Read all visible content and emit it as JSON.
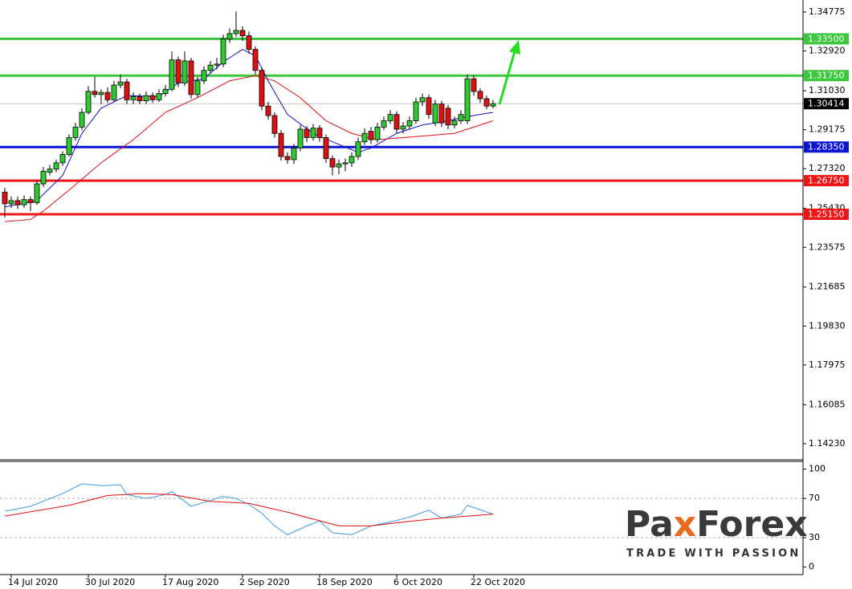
{
  "chart_data": {
    "type": "candlestick",
    "categories": [
      null,
      "14 Jul 2020",
      null,
      null,
      null,
      null,
      null,
      null,
      null,
      null,
      null,
      null,
      null,
      "30 Jul 2020",
      null,
      null,
      null,
      null,
      null,
      null,
      null,
      null,
      null,
      null,
      null,
      "17 Aug 2020",
      null,
      null,
      null,
      null,
      null,
      null,
      null,
      null,
      null,
      null,
      null,
      "2 Sep 2020",
      null,
      null,
      null,
      null,
      null,
      null,
      null,
      null,
      null,
      null,
      null,
      "18 Sep 2020",
      null,
      null,
      null,
      null,
      null,
      null,
      null,
      null,
      null,
      null,
      null,
      "6 Oct 2020",
      null,
      null,
      null,
      null,
      null,
      null,
      null,
      null,
      null,
      null,
      null,
      "22 Oct 2020",
      null,
      null,
      null
    ],
    "open": [
      1.262,
      1.2565,
      1.258,
      1.256,
      1.2585,
      1.257,
      1.266,
      1.2715,
      1.273,
      1.276,
      1.28,
      1.288,
      1.293,
      1.3,
      1.31,
      1.3085,
      1.3095,
      1.306,
      1.313,
      1.3145,
      1.306,
      1.3075,
      1.3055,
      1.308,
      1.306,
      1.309,
      1.311,
      1.325,
      1.314,
      1.3245,
      1.3085,
      1.315,
      1.32,
      1.3225,
      1.323,
      1.335,
      1.3375,
      1.339,
      1.3365,
      1.33,
      1.32,
      1.303,
      1.2985,
      1.29,
      1.279,
      1.2775,
      1.283,
      1.292,
      1.288,
      1.2925,
      1.288,
      1.278,
      1.274,
      1.2755,
      1.276,
      1.279,
      1.286,
      1.291,
      1.287,
      1.293,
      1.296,
      1.299,
      1.292,
      1.2935,
      1.296,
      1.305,
      1.307,
      1.295,
      1.304,
      1.302,
      1.294,
      1.296,
      1.296,
      1.316,
      1.31,
      1.3065,
      1.303
    ],
    "high": [
      1.264,
      1.26,
      1.26,
      1.2605,
      1.26,
      1.2675,
      1.274,
      1.275,
      1.2775,
      1.2815,
      1.2895,
      1.295,
      1.302,
      1.3125,
      1.317,
      1.311,
      1.312,
      1.315,
      1.318,
      1.316,
      1.3095,
      1.309,
      1.31,
      1.3095,
      1.311,
      1.313,
      1.329,
      1.3265,
      1.329,
      1.326,
      1.317,
      1.322,
      1.3245,
      1.326,
      1.337,
      1.34,
      1.348,
      1.341,
      1.3385,
      1.3315,
      1.3215,
      1.305,
      1.3,
      1.2915,
      1.281,
      1.285,
      1.294,
      1.2935,
      1.2945,
      1.294,
      1.2895,
      1.2795,
      1.2775,
      1.278,
      1.281,
      1.288,
      1.2925,
      1.293,
      1.295,
      1.298,
      1.301,
      1.3005,
      1.2955,
      1.298,
      1.307,
      1.309,
      1.3085,
      1.306,
      1.3055,
      1.3035,
      1.298,
      1.301,
      1.318,
      1.3175,
      1.3115,
      1.308,
      1.306
    ],
    "low": [
      1.25,
      1.2545,
      1.254,
      1.2545,
      1.253,
      1.256,
      1.2645,
      1.27,
      1.2715,
      1.2745,
      1.279,
      1.2865,
      1.2915,
      1.299,
      1.307,
      1.304,
      1.3045,
      1.305,
      1.3115,
      1.304,
      1.304,
      1.304,
      1.304,
      1.3045,
      1.305,
      1.3075,
      1.31,
      1.312,
      1.3125,
      1.3065,
      1.307,
      1.3135,
      1.3185,
      1.3205,
      1.3215,
      1.333,
      1.336,
      1.334,
      1.328,
      1.318,
      1.301,
      1.2965,
      1.288,
      1.277,
      1.2755,
      1.2755,
      1.2815,
      1.286,
      1.2865,
      1.286,
      1.276,
      1.27,
      1.2705,
      1.272,
      1.274,
      1.2775,
      1.2845,
      1.285,
      1.2855,
      1.2915,
      1.2945,
      1.29,
      1.29,
      1.292,
      1.2945,
      1.303,
      1.297,
      1.2935,
      1.293,
      1.292,
      1.2925,
      1.2945,
      1.2945,
      1.308,
      1.3045,
      1.3015,
      1.302
    ],
    "close": [
      1.2565,
      1.258,
      1.256,
      1.2585,
      1.257,
      1.266,
      1.272,
      1.273,
      1.276,
      1.28,
      1.288,
      1.293,
      1.3,
      1.31,
      1.3085,
      1.3095,
      1.306,
      1.313,
      1.3145,
      1.306,
      1.3075,
      1.3055,
      1.308,
      1.306,
      1.309,
      1.311,
      1.325,
      1.314,
      1.3245,
      1.3085,
      1.315,
      1.32,
      1.3225,
      1.323,
      1.335,
      1.3375,
      1.339,
      1.3365,
      1.33,
      1.32,
      1.303,
      1.2985,
      1.29,
      1.279,
      1.2775,
      1.283,
      1.292,
      1.288,
      1.2925,
      1.288,
      1.278,
      1.274,
      1.2755,
      1.276,
      1.279,
      1.286,
      1.29,
      1.287,
      1.293,
      1.296,
      1.299,
      1.292,
      1.2935,
      1.296,
      1.305,
      1.307,
      1.299,
      1.304,
      1.295,
      1.294,
      1.296,
      1.299,
      1.316,
      1.31,
      1.3065,
      1.303,
      1.30414
    ],
    "up_color": "#2ecc2e",
    "down_color": "#e01010",
    "ylim": [
      1.135,
      1.3535
    ],
    "yticks": [
      1.34775,
      {
        "value": 1.3292,
        "label": "1.32920"
      },
      {
        "value": 1.3103,
        "label": "1.31030"
      },
      1.29175,
      {
        "value": 1.2732,
        "label": "1.27320"
      },
      {
        "value": 1.2543,
        "label": "1.25430"
      },
      1.23575,
      1.21685,
      {
        "value": 1.1983,
        "label": "1.19830"
      },
      1.17975,
      1.16085,
      {
        "value": 1.1423,
        "label": "1.14230"
      }
    ],
    "levels": [
      {
        "value": 1.335,
        "label": "1.33500",
        "color": "#3cc83c"
      },
      {
        "value": 1.3175,
        "label": "1.31750",
        "color": "#3cc83c"
      },
      {
        "value": 1.2835,
        "label": "1.28350",
        "color": "#0a14d2"
      },
      {
        "value": 1.2675,
        "label": "1.26750",
        "color": "#f01414"
      },
      {
        "value": 1.2515,
        "label": "1.25150",
        "color": "#f01414"
      }
    ],
    "last_price": 1.30414,
    "moving_averages": [
      {
        "color": "#1010c8",
        "x": [
          0,
          5,
          9,
          12,
          15,
          19,
          24,
          27,
          31,
          34,
          37,
          39,
          41,
          44,
          48,
          51,
          55,
          57,
          61,
          65,
          69,
          72,
          76
        ],
        "values": [
          1.255,
          1.258,
          1.27,
          1.29,
          1.302,
          1.308,
          1.3075,
          1.314,
          1.316,
          1.324,
          1.33,
          1.327,
          1.315,
          1.299,
          1.29,
          1.286,
          1.281,
          1.283,
          1.29,
          1.294,
          1.296,
          1.298,
          1.3
        ]
      },
      {
        "color": "#e01010",
        "x": [
          0,
          4,
          6,
          10,
          15,
          20,
          25,
          30,
          35,
          39,
          42,
          46,
          50,
          54,
          58,
          62,
          66,
          70,
          73,
          76
        ],
        "values": [
          1.248,
          1.249,
          1.253,
          1.263,
          1.276,
          1.287,
          1.3,
          1.307,
          1.315,
          1.3175,
          1.315,
          1.307,
          1.296,
          1.29,
          1.287,
          1.288,
          1.289,
          1.29,
          1.293,
          1.296
        ]
      }
    ],
    "indicator": {
      "ylim": [
        -6,
        107
      ],
      "yticks": [
        100,
        70,
        30,
        0
      ],
      "dashed_levels": [
        70,
        30
      ],
      "series": [
        {
          "color": "#3a9ae8",
          "x": [
            0,
            4,
            9,
            12,
            15,
            18,
            19,
            22,
            25,
            26,
            29,
            31,
            34,
            36,
            38,
            40,
            42,
            44,
            47,
            49,
            51,
            54,
            57,
            60,
            63,
            66,
            68,
            71,
            72,
            76
          ],
          "values": [
            57,
            62,
            75,
            85,
            83,
            84,
            74,
            70,
            74,
            77,
            62,
            66,
            72,
            70,
            64,
            55,
            42,
            33,
            42,
            47,
            35,
            33,
            42,
            46,
            51,
            58,
            50,
            54,
            63,
            54
          ]
        },
        {
          "color": "#e01010",
          "x": [
            0,
            10,
            16,
            21,
            26,
            32,
            38,
            44,
            52,
            57,
            62,
            68,
            76
          ],
          "values": [
            52,
            63,
            73,
            75,
            74,
            67,
            65,
            56,
            42,
            42,
            46,
            50,
            54
          ]
        }
      ]
    }
  },
  "watermark": {
    "brand_parts": [
      "Pa",
      "x",
      "Forex"
    ],
    "tagline": "TRADE WITH PASSION"
  }
}
